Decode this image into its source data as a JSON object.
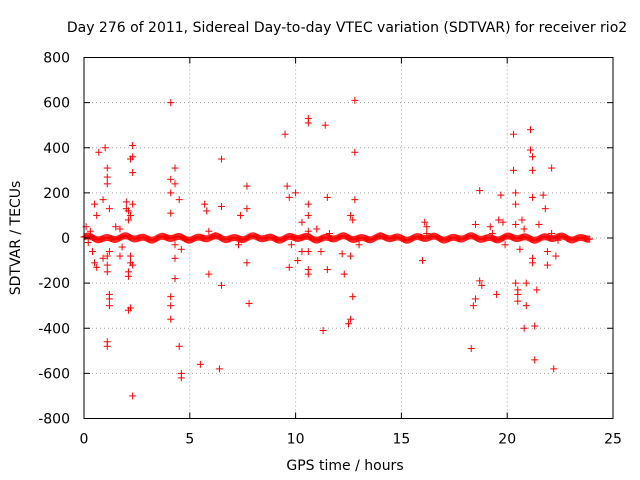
{
  "chart_data": {
    "type": "scatter",
    "title": "Day 276 of 2011, Sidereal Day-to-day VTEC variation (SDTVAR) for receiver rio2",
    "xlabel": "GPS time / hours",
    "ylabel": "SDTVAR / TECUs",
    "xlim": [
      0,
      25
    ],
    "ylim": [
      -800,
      800
    ],
    "x_ticks": [
      0,
      5,
      10,
      15,
      20,
      25
    ],
    "y_ticks": [
      -800,
      -600,
      -400,
      -200,
      0,
      200,
      400,
      600,
      800
    ],
    "grid": true,
    "marker": "plus",
    "color": "#ff0000",
    "band": {
      "x_start": 0.0,
      "x_end": 23.9,
      "y": 0,
      "step_hours": 0.05
    },
    "series": [
      {
        "name": "SDTVAR",
        "points": [
          [
            0.1,
            50
          ],
          [
            0.2,
            -20
          ],
          [
            0.3,
            30
          ],
          [
            0.4,
            -60
          ],
          [
            0.5,
            150
          ],
          [
            0.5,
            -110
          ],
          [
            0.6,
            100
          ],
          [
            0.6,
            -130
          ],
          [
            0.7,
            380
          ],
          [
            0.9,
            170
          ],
          [
            0.9,
            -90
          ],
          [
            1.0,
            400
          ],
          [
            1.1,
            310
          ],
          [
            1.1,
            270
          ],
          [
            1.1,
            240
          ],
          [
            1.1,
            -80
          ],
          [
            1.1,
            -120
          ],
          [
            1.1,
            -150
          ],
          [
            1.2,
            -250
          ],
          [
            1.2,
            -270
          ],
          [
            1.2,
            -300
          ],
          [
            1.1,
            -460
          ],
          [
            1.1,
            -480
          ],
          [
            1.2,
            130
          ],
          [
            1.2,
            -60
          ],
          [
            1.5,
            50
          ],
          [
            1.7,
            40
          ],
          [
            1.7,
            -80
          ],
          [
            1.8,
            -40
          ],
          [
            2.0,
            160
          ],
          [
            2.0,
            130
          ],
          [
            2.1,
            120
          ],
          [
            2.1,
            80
          ],
          [
            2.1,
            -150
          ],
          [
            2.1,
            -170
          ],
          [
            2.1,
            -320
          ],
          [
            2.2,
            350
          ],
          [
            2.2,
            100
          ],
          [
            2.2,
            -80
          ],
          [
            2.2,
            -110
          ],
          [
            2.2,
            -310
          ],
          [
            2.3,
            410
          ],
          [
            2.3,
            360
          ],
          [
            2.3,
            290
          ],
          [
            2.3,
            150
          ],
          [
            2.3,
            -120
          ],
          [
            2.3,
            -700
          ],
          [
            4.1,
            600
          ],
          [
            4.1,
            260
          ],
          [
            4.1,
            200
          ],
          [
            4.1,
            110
          ],
          [
            4.1,
            -260
          ],
          [
            4.1,
            -300
          ],
          [
            4.1,
            -360
          ],
          [
            4.3,
            310
          ],
          [
            4.3,
            240
          ],
          [
            4.3,
            -30
          ],
          [
            4.3,
            -90
          ],
          [
            4.3,
            -180
          ],
          [
            4.5,
            170
          ],
          [
            4.5,
            -480
          ],
          [
            4.6,
            -600
          ],
          [
            4.6,
            -620
          ],
          [
            4.6,
            -50
          ],
          [
            5.5,
            -560
          ],
          [
            5.7,
            150
          ],
          [
            5.8,
            120
          ],
          [
            5.9,
            30
          ],
          [
            5.9,
            -160
          ],
          [
            6.2,
            10
          ],
          [
            6.4,
            -580
          ],
          [
            6.5,
            350
          ],
          [
            6.5,
            140
          ],
          [
            6.5,
            -210
          ],
          [
            7.3,
            -30
          ],
          [
            7.4,
            100
          ],
          [
            7.7,
            230
          ],
          [
            7.7,
            130
          ],
          [
            7.7,
            -110
          ],
          [
            7.8,
            -290
          ],
          [
            9.5,
            460
          ],
          [
            9.6,
            230
          ],
          [
            9.7,
            180
          ],
          [
            9.7,
            -130
          ],
          [
            9.8,
            -30
          ],
          [
            10.0,
            200
          ],
          [
            10.1,
            -100
          ],
          [
            10.3,
            70
          ],
          [
            10.3,
            -60
          ],
          [
            10.6,
            530
          ],
          [
            10.6,
            510
          ],
          [
            10.6,
            150
          ],
          [
            10.6,
            100
          ],
          [
            10.6,
            30
          ],
          [
            10.6,
            -60
          ],
          [
            10.6,
            -140
          ],
          [
            10.6,
            -160
          ],
          [
            11.0,
            40
          ],
          [
            11.2,
            -60
          ],
          [
            11.3,
            -410
          ],
          [
            11.4,
            500
          ],
          [
            11.5,
            180
          ],
          [
            11.5,
            -140
          ],
          [
            11.6,
            20
          ],
          [
            12.2,
            -70
          ],
          [
            12.3,
            -160
          ],
          [
            12.5,
            -380
          ],
          [
            12.6,
            -360
          ],
          [
            12.6,
            100
          ],
          [
            12.6,
            -80
          ],
          [
            12.7,
            80
          ],
          [
            12.7,
            -260
          ],
          [
            12.8,
            610
          ],
          [
            12.8,
            380
          ],
          [
            12.8,
            170
          ],
          [
            13.0,
            -30
          ],
          [
            14.0,
            10
          ],
          [
            16.0,
            -100
          ],
          [
            16.1,
            70
          ],
          [
            16.2,
            50
          ],
          [
            16.2,
            20
          ],
          [
            18.3,
            -490
          ],
          [
            18.4,
            -300
          ],
          [
            18.5,
            -270
          ],
          [
            18.5,
            60
          ],
          [
            18.7,
            210
          ],
          [
            18.7,
            -190
          ],
          [
            18.8,
            -210
          ],
          [
            19.2,
            50
          ],
          [
            19.3,
            20
          ],
          [
            19.5,
            -250
          ],
          [
            19.6,
            80
          ],
          [
            19.7,
            190
          ],
          [
            19.8,
            70
          ],
          [
            19.9,
            -30
          ],
          [
            20.3,
            460
          ],
          [
            20.3,
            300
          ],
          [
            20.4,
            200
          ],
          [
            20.4,
            150
          ],
          [
            20.4,
            60
          ],
          [
            20.4,
            -200
          ],
          [
            20.5,
            -230
          ],
          [
            20.5,
            -250
          ],
          [
            20.5,
            -280
          ],
          [
            20.6,
            -50
          ],
          [
            20.7,
            80
          ],
          [
            20.8,
            40
          ],
          [
            20.8,
            -400
          ],
          [
            20.9,
            -300
          ],
          [
            20.9,
            -200
          ],
          [
            21.1,
            480
          ],
          [
            21.1,
            390
          ],
          [
            21.2,
            360
          ],
          [
            21.2,
            300
          ],
          [
            21.2,
            180
          ],
          [
            21.2,
            -90
          ],
          [
            21.2,
            -110
          ],
          [
            21.3,
            -540
          ],
          [
            21.3,
            -390
          ],
          [
            21.4,
            -230
          ],
          [
            21.5,
            60
          ],
          [
            21.7,
            190
          ],
          [
            21.8,
            130
          ],
          [
            21.9,
            -60
          ],
          [
            21.9,
            -120
          ],
          [
            22.1,
            310
          ],
          [
            22.1,
            20
          ],
          [
            22.2,
            -580
          ],
          [
            22.3,
            -80
          ],
          [
            22.4,
            -10
          ]
        ]
      }
    ]
  }
}
